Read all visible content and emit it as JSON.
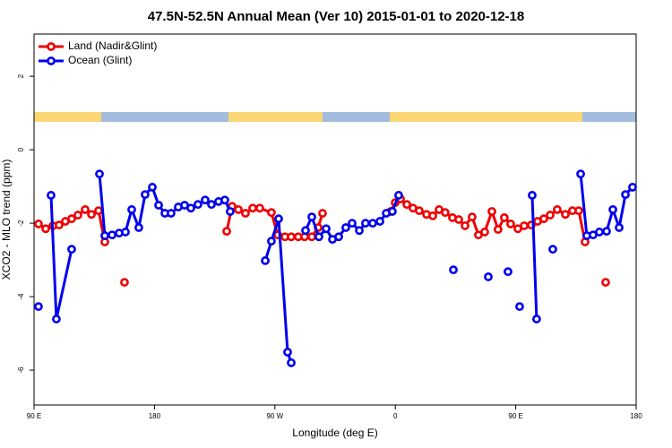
{
  "chart_data": {
    "type": "line",
    "title": "47.5N-52.5N Annual Mean (Ver 10)   2015-01-01 to 2020-12-18",
    "x_label": "Longitude (deg E)",
    "y_label": "XCO2 - MLO trend (ppm)",
    "xlim": [
      90,
      540
    ],
    "ylim": [
      -6.95,
      3.15
    ],
    "xticks": [
      {
        "value": 90,
        "label": "90 E"
      },
      180,
      {
        "value": 270,
        "label": "90 W"
      },
      {
        "value": 360,
        "label": "0"
      },
      {
        "value": 450,
        "label": "90 E"
      },
      {
        "value": 540,
        "label": "180"
      }
    ],
    "yticks": [
      -6,
      -4,
      -2,
      0,
      2
    ],
    "legend": "top-left",
    "series": [
      {
        "name": "Land (Nadir&Glint)",
        "color": "#ee0000",
        "x": [
          93.3,
          98.7,
          104.1,
          108.7,
          113.4,
          118.1,
          122.8,
          128.2,
          132.9,
          138.2,
          142.9,
          null,
          157.6,
          null,
          234.0,
          238.0,
          242.7,
          248.0,
          253.4,
          258.7,
          267.4,
          272.1,
          277.5,
          282.2,
          287.5,
          292.2,
          297.6,
          302.3,
          305.6,
          null,
          356.5,
          359.9,
          363.9,
          368.6,
          373.2,
          377.9,
          383.3,
          388.0,
          392.7,
          397.3,
          402.7,
          407.4,
          412.1,
          417.4,
          422.1,
          426.8,
          432.2,
          436.8,
          441.5,
          446.2,
          451.6,
          456.3,
          461.6,
          466.3,
          471.0,
          475.7,
          481.0,
          487.1,
          492.4,
          497.1,
          501.8,
          null,
          517.2
        ],
        "values": [
          -2.02,
          -2.15,
          -2.07,
          -2.05,
          -1.95,
          -1.88,
          -1.78,
          -1.63,
          -1.76,
          -1.66,
          -2.51,
          null,
          -3.61,
          null,
          -2.22,
          -1.54,
          -1.63,
          -1.73,
          -1.59,
          -1.59,
          -1.71,
          -2.32,
          -2.37,
          -2.37,
          -2.37,
          -2.37,
          -2.37,
          -2.12,
          -1.73,
          null,
          -1.68,
          -1.44,
          -1.34,
          -1.49,
          -1.59,
          -1.66,
          -1.76,
          -1.8,
          -1.63,
          -1.71,
          -1.85,
          -1.9,
          -2.07,
          -1.83,
          -2.32,
          -2.24,
          -1.68,
          -2.17,
          -1.85,
          -2.02,
          -2.15,
          -2.07,
          -2.05,
          -1.95,
          -1.88,
          -1.78,
          -1.63,
          -1.76,
          -1.66,
          -1.66,
          -2.51,
          null,
          -3.61
        ]
      },
      {
        "name": "Ocean (Glint)",
        "color": "#0000ee",
        "x": [
          93.3,
          null,
          102.7,
          106.7,
          118.1,
          null,
          138.9,
          142.9,
          148.3,
          153.6,
          158.3,
          163.0,
          168.3,
          173.0,
          178.4,
          183.1,
          187.8,
          192.4,
          197.8,
          202.5,
          207.2,
          212.5,
          217.9,
          222.6,
          227.9,
          232.6,
          236.6,
          null,
          262.8,
          267.4,
          272.8,
          279.5,
          282.2,
          null,
          292.9,
          297.6,
          302.9,
          308.3,
          313.0,
          317.7,
          323.0,
          327.7,
          333.1,
          337.7,
          343.1,
          348.5,
          353.2,
          357.8,
          362.5,
          null,
          403.4,
          null,
          429.5,
          null,
          444.2,
          null,
          452.9,
          null,
          462.3,
          465.6,
          null,
          477.7,
          null,
          498.5,
          503.1,
          507.8,
          512.5,
          517.9,
          522.6,
          527.3,
          532.0,
          537.3
        ],
        "values": [
          -4.27,
          null,
          -1.24,
          -4.61,
          -2.71,
          null,
          -0.66,
          -2.34,
          -2.32,
          -2.27,
          -2.24,
          -1.63,
          -2.12,
          -1.22,
          -1.02,
          -1.51,
          -1.73,
          -1.73,
          -1.56,
          -1.51,
          -1.59,
          -1.49,
          -1.37,
          -1.49,
          -1.41,
          -1.37,
          -1.68,
          null,
          -3.02,
          -2.49,
          -1.88,
          -5.51,
          -5.8,
          null,
          -2.2,
          -1.83,
          -2.37,
          -2.15,
          -2.44,
          -2.37,
          -2.12,
          -2.0,
          -2.2,
          -2.0,
          -2.0,
          -1.95,
          -1.73,
          -1.68,
          -1.24,
          null,
          -3.27,
          null,
          -3.46,
          null,
          -3.32,
          null,
          -4.27,
          null,
          -1.24,
          -4.61,
          null,
          -2.71,
          null,
          -0.66,
          -2.34,
          -2.32,
          -2.24,
          -2.22,
          -1.63,
          -2.12,
          -1.22,
          -1.02
        ]
      }
    ]
  }
}
